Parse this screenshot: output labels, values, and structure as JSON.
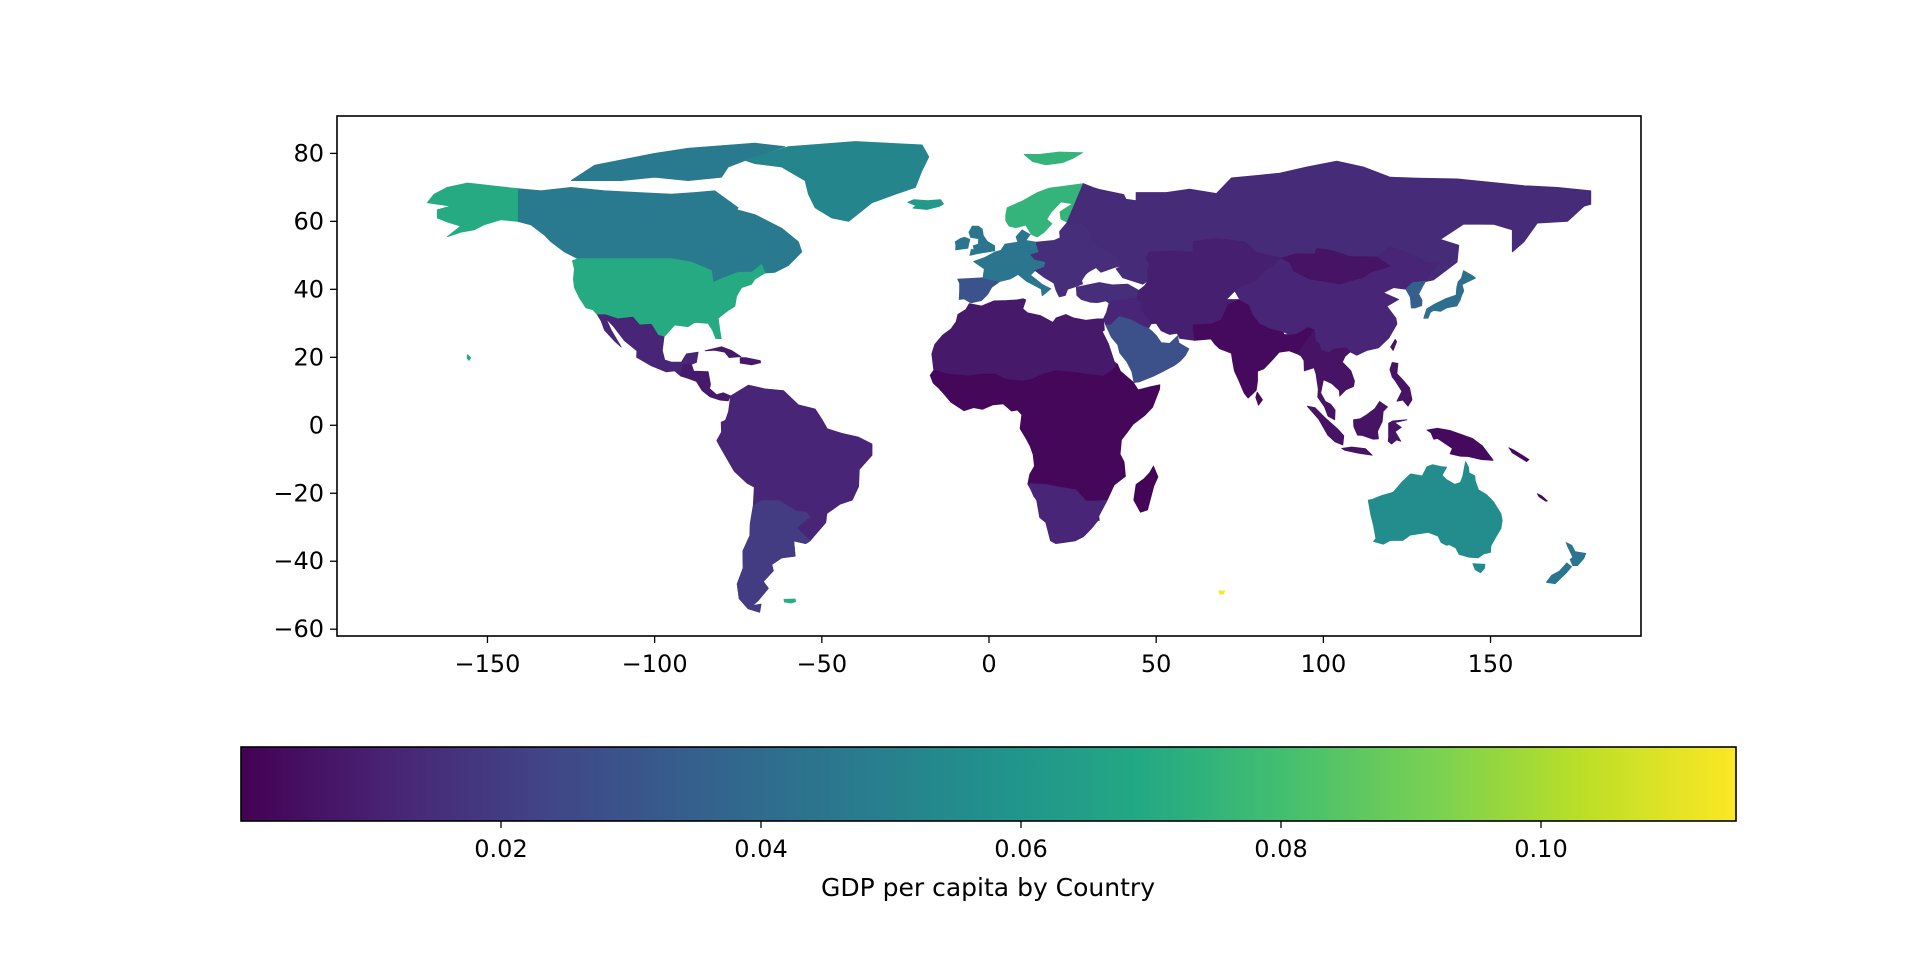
{
  "chart_data": {
    "type": "choropleth",
    "projection": "plate-carree",
    "colormap": "viridis",
    "axes": {
      "xlim": [
        -195,
        195
      ],
      "ylim": [
        -62,
        91
      ],
      "xticks": [
        -150,
        -100,
        -50,
        0,
        50,
        100,
        150
      ],
      "yticks": [
        -60,
        -40,
        -20,
        0,
        20,
        40,
        60,
        80
      ],
      "xtick_labels": [
        "−150",
        "−100",
        "−50",
        "0",
        "50",
        "100",
        "150"
      ],
      "ytick_labels": [
        "−60",
        "−40",
        "−20",
        "0",
        "20",
        "40",
        "60",
        "80"
      ]
    },
    "colorbar": {
      "orientation": "horizontal",
      "position": "bottom",
      "range": [
        0.0,
        0.115
      ],
      "ticks": [
        0.02,
        0.04,
        0.06,
        0.08,
        0.1
      ],
      "tick_labels": [
        "0.02",
        "0.04",
        "0.06",
        "0.08",
        "0.10"
      ],
      "label": "GDP per capita by Country"
    },
    "regions": [
      {
        "name": "Canada",
        "value": 0.047
      },
      {
        "name": "Greenland",
        "value": 0.052
      },
      {
        "name": "Alaska (USA)",
        "value": 0.07
      },
      {
        "name": "United States",
        "value": 0.07
      },
      {
        "name": "Mexico",
        "value": 0.012
      },
      {
        "name": "Central America",
        "value": 0.008
      },
      {
        "name": "South America",
        "value": 0.012
      },
      {
        "name": "Southern Cone",
        "value": 0.02
      },
      {
        "name": "Iceland",
        "value": 0.062
      },
      {
        "name": "Scandinavia",
        "value": 0.075
      },
      {
        "name": "Western Europe",
        "value": 0.045
      },
      {
        "name": "Iberia",
        "value": 0.03
      },
      {
        "name": "Eastern Europe",
        "value": 0.015
      },
      {
        "name": "Russia",
        "value": 0.014
      },
      {
        "name": "Central Asia",
        "value": 0.01
      },
      {
        "name": "China",
        "value": 0.012
      },
      {
        "name": "Mongolia",
        "value": 0.006
      },
      {
        "name": "Japan",
        "value": 0.042
      },
      {
        "name": "South Korea",
        "value": 0.035
      },
      {
        "name": "Middle East",
        "value": 0.012
      },
      {
        "name": "Arabian Peninsula",
        "value": 0.028
      },
      {
        "name": "India",
        "value": 0.003
      },
      {
        "name": "Southeast Asia",
        "value": 0.006
      },
      {
        "name": "Maritime Southeast Asia",
        "value": 0.006
      },
      {
        "name": "Papua New Guinea",
        "value": 0.003
      },
      {
        "name": "North Africa",
        "value": 0.008
      },
      {
        "name": "Sub-Saharan Africa",
        "value": 0.002
      },
      {
        "name": "Southern Africa",
        "value": 0.012
      },
      {
        "name": "Madagascar",
        "value": 0.001
      },
      {
        "name": "Australia",
        "value": 0.055
      },
      {
        "name": "New Zealand",
        "value": 0.045
      },
      {
        "name": "Svalbard",
        "value": 0.075
      },
      {
        "name": "Falkland Islands",
        "value": 0.072
      },
      {
        "name": "Kerguelen Islands",
        "value": 0.115
      }
    ]
  }
}
